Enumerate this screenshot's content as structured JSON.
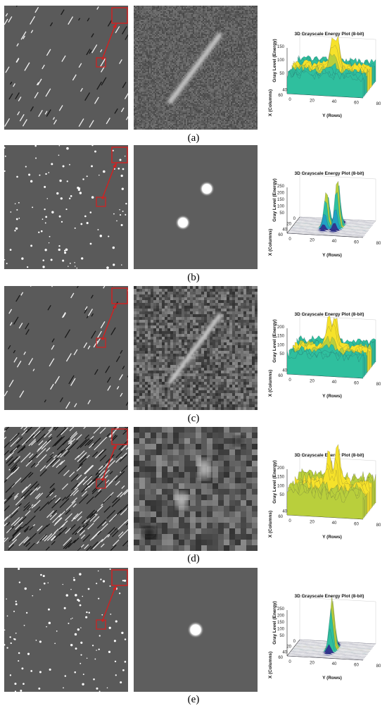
{
  "panels": [
    {
      "id": "a",
      "caption": "(a)",
      "star_kind": "streak",
      "zoom_kind": "streak",
      "surface_kind": "noisy-ridge",
      "chart_data": {
        "type": "surface",
        "title": "3D Grayscale Energy Plot (8-bit)",
        "zlabel": "Gray Level (Energy)",
        "xlabel": "Y (Rows)",
        "ylabel": "X (Columns)",
        "z_ticks": [
          "50",
          "100",
          "150"
        ],
        "y_ticks": [
          "0",
          "20",
          "40",
          "60",
          "80"
        ],
        "x_ticks": [
          "0",
          "20",
          "40",
          "60"
        ],
        "colormap": [
          "#2b2d8f",
          "#2f6fc0",
          "#21a0c4",
          "#2fbf9e",
          "#b9cf3c",
          "#f6e22a"
        ],
        "peaks": [
          {
            "y": 35,
            "height": 110
          },
          {
            "y": 40,
            "height": 115
          }
        ]
      }
    },
    {
      "id": "b",
      "caption": "(b)",
      "star_kind": "dots",
      "zoom_kind": "two-spots",
      "surface_kind": "two-peaks",
      "chart_data": {
        "type": "surface",
        "title": "3D Grayscale Energy Plot (8-bit)",
        "zlabel": "Gray Level (Energy)",
        "xlabel": "Y (Rows)",
        "ylabel": "X (Columns)",
        "z_ticks": [
          "50",
          "100",
          "150",
          "200",
          "250"
        ],
        "y_ticks": [
          "0",
          "20",
          "40",
          "60",
          "80"
        ],
        "x_ticks": [
          "0",
          "20",
          "40",
          "60"
        ],
        "colormap": [
          "#2b2d8f",
          "#2f6fc0",
          "#21a0c4",
          "#2fbf9e",
          "#b9cf3c",
          "#f6e22a"
        ],
        "peaks": [
          {
            "y": 30,
            "height": 140
          },
          {
            "y": 40,
            "height": 190
          }
        ]
      }
    },
    {
      "id": "c",
      "caption": "(c)",
      "star_kind": "streak",
      "zoom_kind": "noisy-streak",
      "surface_kind": "noisy-ridge",
      "chart_data": {
        "type": "surface",
        "title": "3D Grayscale Energy Plot (8-bit)",
        "zlabel": "Gray Level (Energy)",
        "xlabel": "Y (Rows)",
        "ylabel": "X (Columns)",
        "z_ticks": [
          "50",
          "100",
          "150",
          "200"
        ],
        "y_ticks": [
          "0",
          "20",
          "40",
          "60",
          "80"
        ],
        "x_ticks": [
          "0",
          "20",
          "40",
          "60"
        ],
        "colormap": [
          "#2b2d8f",
          "#2f6fc0",
          "#21a0c4",
          "#2fbf9e",
          "#b9cf3c",
          "#f6e22a"
        ],
        "peaks": [
          {
            "y": 32,
            "height": 120
          },
          {
            "y": 38,
            "height": 125
          }
        ]
      }
    },
    {
      "id": "d",
      "caption": "(d)",
      "star_kind": "hatch",
      "zoom_kind": "blurry",
      "surface_kind": "very-noisy",
      "chart_data": {
        "type": "surface",
        "title": "3D Grayscale Energy Plot (8-bit)",
        "zlabel": "Gray Level (Energy)",
        "xlabel": "Y (Rows)",
        "ylabel": "X (Columns)",
        "z_ticks": [
          "50",
          "100",
          "150",
          "200"
        ],
        "y_ticks": [
          "0",
          "20",
          "40",
          "60",
          "80"
        ],
        "x_ticks": [
          "0",
          "20",
          "40",
          "60"
        ],
        "colormap": [
          "#2b2d8f",
          "#2f6fc0",
          "#21a0c4",
          "#2fbf9e",
          "#b9cf3c",
          "#f6e22a"
        ],
        "peaks": [
          {
            "y": 32,
            "height": 130
          },
          {
            "y": 40,
            "height": 140
          }
        ]
      }
    },
    {
      "id": "e",
      "caption": "(e)",
      "star_kind": "dots",
      "zoom_kind": "one-spot",
      "surface_kind": "one-peak",
      "chart_data": {
        "type": "surface",
        "title": "3D Grayscale Energy Plot (8-bit)",
        "zlabel": "Gray Level (Energy)",
        "xlabel": "Y (Rows)",
        "ylabel": "X (Columns)",
        "z_ticks": [
          "50",
          "100",
          "150",
          "200",
          "250"
        ],
        "y_ticks": [
          "0",
          "20",
          "40",
          "60",
          "80"
        ],
        "x_ticks": [
          "0",
          "20",
          "40",
          "60"
        ],
        "colormap": [
          "#2b2d8f",
          "#2f6fc0",
          "#21a0c4",
          "#2fbf9e",
          "#b9cf3c",
          "#f6e22a"
        ],
        "peaks": [
          {
            "y": 35,
            "height": 200
          }
        ]
      }
    }
  ]
}
